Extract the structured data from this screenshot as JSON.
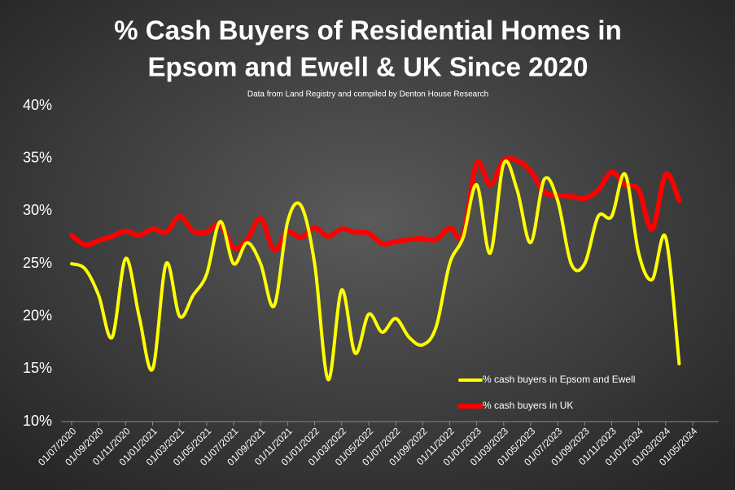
{
  "chart_data": {
    "type": "line",
    "title": [
      "% Cash Buyers of Residential Homes in",
      "Epsom and Ewell & UK Since 2020"
    ],
    "subtitle": "Data from Land Registry and compiled by Denton House Research",
    "categories": [
      "01/07/2020",
      null,
      "01/09/2020",
      null,
      "01/11/2020",
      null,
      "01/01/2021",
      null,
      "01/03/2021",
      null,
      "01/05/2021",
      null,
      "01/07/2021",
      null,
      "01/09/2021",
      null,
      "01/11/2021",
      null,
      "01/01/2022",
      null,
      "01/03/2022",
      null,
      "01/05/2022",
      null,
      "01/07/2022",
      null,
      "01/09/2022",
      null,
      "01/11/2022",
      null,
      "01/01/2023",
      null,
      "01/03/2023",
      null,
      "01/05/2023",
      null,
      "01/07/2023",
      null,
      "01/09/2023",
      null,
      "01/11/2023",
      null,
      "01/01/2024",
      null,
      "01/03/2024",
      null,
      "01/05/2024"
    ],
    "series": [
      {
        "name": "% cash buyers in Epsom and Ewell",
        "color": "#ffff00",
        "values": [
          25,
          24.5,
          22,
          18,
          25.5,
          20,
          15,
          25,
          20,
          22,
          24,
          29,
          25,
          27,
          25,
          21,
          29,
          30.5,
          25,
          14,
          22.5,
          16.5,
          20.2,
          18.5,
          19.8,
          18,
          17.3,
          19,
          25,
          27.5,
          32.5,
          26,
          34.5,
          32,
          27,
          33,
          31,
          25,
          25,
          29.5,
          29.5,
          33.5,
          26,
          23.5,
          27.5,
          15.5,
          null
        ]
      },
      {
        "name": "% cash buyers in UK",
        "color": "#ff0000",
        "values": [
          27.7,
          26.8,
          27.2,
          27.6,
          28.1,
          27.7,
          28.3,
          28,
          29.5,
          28.1,
          28,
          28.7,
          26.5,
          27.3,
          29.3,
          26.3,
          28,
          27.5,
          28.4,
          27.6,
          28.3,
          28,
          27.9,
          26.9,
          27.1,
          27.3,
          27.4,
          27.3,
          28.4,
          27.7,
          34.5,
          32.5,
          34.8,
          34.8,
          33.8,
          31.8,
          31.5,
          31.4,
          31.2,
          32,
          33.7,
          32.5,
          32,
          28.3,
          33.5,
          31,
          null
        ]
      }
    ],
    "ylim": [
      10,
      40
    ],
    "yticks": [
      {
        "value": 10,
        "label": "10%"
      },
      {
        "value": 15,
        "label": "15%"
      },
      {
        "value": 20,
        "label": "20%"
      },
      {
        "value": 25,
        "label": "25%"
      },
      {
        "value": 30,
        "label": "30%"
      },
      {
        "value": 35,
        "label": "35%"
      },
      {
        "value": 40,
        "label": "40%"
      }
    ],
    "grid": false,
    "legend": "lower right"
  }
}
